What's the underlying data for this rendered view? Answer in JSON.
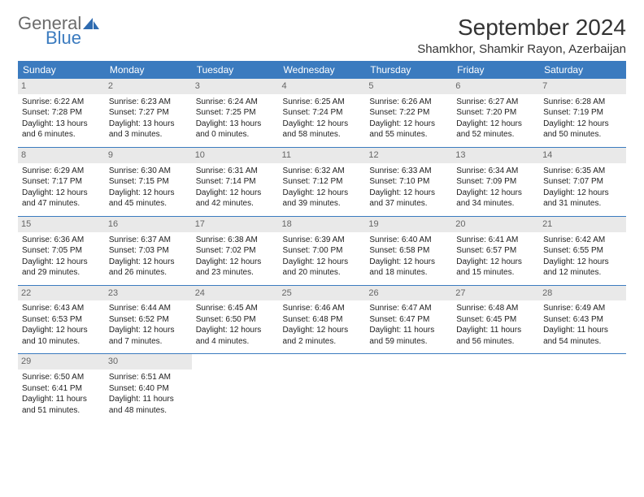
{
  "logo": {
    "text1": "General",
    "text2": "Blue"
  },
  "title": "September 2024",
  "location": "Shamkhor, Shamkir Rayon, Azerbaijan",
  "colors": {
    "header_bg": "#3b7bbf",
    "header_fg": "#ffffff",
    "daynum_bg": "#e9e9e9",
    "daynum_fg": "#666666",
    "row_divider": "#3b7bbf",
    "text": "#222222",
    "logo_gray": "#6b6b6b",
    "logo_blue": "#3b7bbf"
  },
  "weekdays": [
    "Sunday",
    "Monday",
    "Tuesday",
    "Wednesday",
    "Thursday",
    "Friday",
    "Saturday"
  ],
  "weeks": [
    [
      {
        "day": "1",
        "sunrise": "Sunrise: 6:22 AM",
        "sunset": "Sunset: 7:28 PM",
        "daylight": "Daylight: 13 hours and 6 minutes."
      },
      {
        "day": "2",
        "sunrise": "Sunrise: 6:23 AM",
        "sunset": "Sunset: 7:27 PM",
        "daylight": "Daylight: 13 hours and 3 minutes."
      },
      {
        "day": "3",
        "sunrise": "Sunrise: 6:24 AM",
        "sunset": "Sunset: 7:25 PM",
        "daylight": "Daylight: 13 hours and 0 minutes."
      },
      {
        "day": "4",
        "sunrise": "Sunrise: 6:25 AM",
        "sunset": "Sunset: 7:24 PM",
        "daylight": "Daylight: 12 hours and 58 minutes."
      },
      {
        "day": "5",
        "sunrise": "Sunrise: 6:26 AM",
        "sunset": "Sunset: 7:22 PM",
        "daylight": "Daylight: 12 hours and 55 minutes."
      },
      {
        "day": "6",
        "sunrise": "Sunrise: 6:27 AM",
        "sunset": "Sunset: 7:20 PM",
        "daylight": "Daylight: 12 hours and 52 minutes."
      },
      {
        "day": "7",
        "sunrise": "Sunrise: 6:28 AM",
        "sunset": "Sunset: 7:19 PM",
        "daylight": "Daylight: 12 hours and 50 minutes."
      }
    ],
    [
      {
        "day": "8",
        "sunrise": "Sunrise: 6:29 AM",
        "sunset": "Sunset: 7:17 PM",
        "daylight": "Daylight: 12 hours and 47 minutes."
      },
      {
        "day": "9",
        "sunrise": "Sunrise: 6:30 AM",
        "sunset": "Sunset: 7:15 PM",
        "daylight": "Daylight: 12 hours and 45 minutes."
      },
      {
        "day": "10",
        "sunrise": "Sunrise: 6:31 AM",
        "sunset": "Sunset: 7:14 PM",
        "daylight": "Daylight: 12 hours and 42 minutes."
      },
      {
        "day": "11",
        "sunrise": "Sunrise: 6:32 AM",
        "sunset": "Sunset: 7:12 PM",
        "daylight": "Daylight: 12 hours and 39 minutes."
      },
      {
        "day": "12",
        "sunrise": "Sunrise: 6:33 AM",
        "sunset": "Sunset: 7:10 PM",
        "daylight": "Daylight: 12 hours and 37 minutes."
      },
      {
        "day": "13",
        "sunrise": "Sunrise: 6:34 AM",
        "sunset": "Sunset: 7:09 PM",
        "daylight": "Daylight: 12 hours and 34 minutes."
      },
      {
        "day": "14",
        "sunrise": "Sunrise: 6:35 AM",
        "sunset": "Sunset: 7:07 PM",
        "daylight": "Daylight: 12 hours and 31 minutes."
      }
    ],
    [
      {
        "day": "15",
        "sunrise": "Sunrise: 6:36 AM",
        "sunset": "Sunset: 7:05 PM",
        "daylight": "Daylight: 12 hours and 29 minutes."
      },
      {
        "day": "16",
        "sunrise": "Sunrise: 6:37 AM",
        "sunset": "Sunset: 7:03 PM",
        "daylight": "Daylight: 12 hours and 26 minutes."
      },
      {
        "day": "17",
        "sunrise": "Sunrise: 6:38 AM",
        "sunset": "Sunset: 7:02 PM",
        "daylight": "Daylight: 12 hours and 23 minutes."
      },
      {
        "day": "18",
        "sunrise": "Sunrise: 6:39 AM",
        "sunset": "Sunset: 7:00 PM",
        "daylight": "Daylight: 12 hours and 20 minutes."
      },
      {
        "day": "19",
        "sunrise": "Sunrise: 6:40 AM",
        "sunset": "Sunset: 6:58 PM",
        "daylight": "Daylight: 12 hours and 18 minutes."
      },
      {
        "day": "20",
        "sunrise": "Sunrise: 6:41 AM",
        "sunset": "Sunset: 6:57 PM",
        "daylight": "Daylight: 12 hours and 15 minutes."
      },
      {
        "day": "21",
        "sunrise": "Sunrise: 6:42 AM",
        "sunset": "Sunset: 6:55 PM",
        "daylight": "Daylight: 12 hours and 12 minutes."
      }
    ],
    [
      {
        "day": "22",
        "sunrise": "Sunrise: 6:43 AM",
        "sunset": "Sunset: 6:53 PM",
        "daylight": "Daylight: 12 hours and 10 minutes."
      },
      {
        "day": "23",
        "sunrise": "Sunrise: 6:44 AM",
        "sunset": "Sunset: 6:52 PM",
        "daylight": "Daylight: 12 hours and 7 minutes."
      },
      {
        "day": "24",
        "sunrise": "Sunrise: 6:45 AM",
        "sunset": "Sunset: 6:50 PM",
        "daylight": "Daylight: 12 hours and 4 minutes."
      },
      {
        "day": "25",
        "sunrise": "Sunrise: 6:46 AM",
        "sunset": "Sunset: 6:48 PM",
        "daylight": "Daylight: 12 hours and 2 minutes."
      },
      {
        "day": "26",
        "sunrise": "Sunrise: 6:47 AM",
        "sunset": "Sunset: 6:47 PM",
        "daylight": "Daylight: 11 hours and 59 minutes."
      },
      {
        "day": "27",
        "sunrise": "Sunrise: 6:48 AM",
        "sunset": "Sunset: 6:45 PM",
        "daylight": "Daylight: 11 hours and 56 minutes."
      },
      {
        "day": "28",
        "sunrise": "Sunrise: 6:49 AM",
        "sunset": "Sunset: 6:43 PM",
        "daylight": "Daylight: 11 hours and 54 minutes."
      }
    ],
    [
      {
        "day": "29",
        "sunrise": "Sunrise: 6:50 AM",
        "sunset": "Sunset: 6:41 PM",
        "daylight": "Daylight: 11 hours and 51 minutes."
      },
      {
        "day": "30",
        "sunrise": "Sunrise: 6:51 AM",
        "sunset": "Sunset: 6:40 PM",
        "daylight": "Daylight: 11 hours and 48 minutes."
      },
      {
        "empty": true
      },
      {
        "empty": true
      },
      {
        "empty": true
      },
      {
        "empty": true
      },
      {
        "empty": true
      }
    ]
  ]
}
